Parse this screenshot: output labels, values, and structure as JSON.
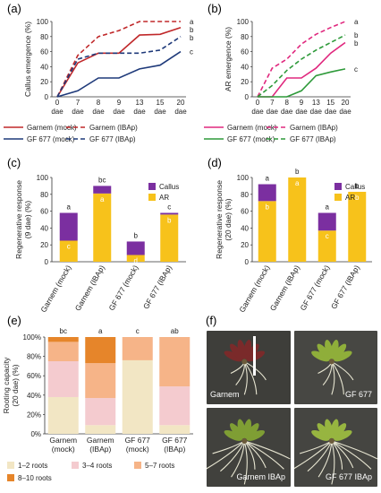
{
  "panel_letters": [
    "(a)",
    "(b)",
    "(c)",
    "(d)",
    "(e)",
    "(f)"
  ],
  "chart_data": [
    {
      "panel": "(a)",
      "type": "line",
      "ylabel": "Callus emergence (%)",
      "xlabel": "dae",
      "x": [
        "0",
        "7",
        "8",
        "9",
        "13",
        "15",
        "20"
      ],
      "ylim": [
        0,
        100
      ],
      "yticks": [
        "0",
        "20",
        "40",
        "60",
        "80",
        "100"
      ],
      "series": [
        {
          "name": "Garnem (mock)",
          "color": "#c0282a",
          "dash": "solid",
          "values": [
            0,
            45,
            58,
            58,
            82,
            83,
            92
          ]
        },
        {
          "name": "Garnem (IBAp)",
          "color": "#c0282a",
          "dash": "dashed",
          "values": [
            0,
            55,
            80,
            88,
            100,
            100,
            100
          ]
        },
        {
          "name": "GF 677 (mock)",
          "color": "#1f3a7a",
          "dash": "solid",
          "values": [
            0,
            8,
            25,
            25,
            37,
            42,
            60
          ]
        },
        {
          "name": "GF 677 (IBAp)",
          "color": "#1f3a7a",
          "dash": "dashed",
          "values": [
            0,
            50,
            58,
            58,
            58,
            62,
            80
          ]
        }
      ],
      "end_letters": [
        "a",
        "b",
        "b",
        "c"
      ]
    },
    {
      "panel": "(b)",
      "type": "line",
      "ylabel": "AR emergence (%)",
      "xlabel": "dae",
      "x": [
        "0",
        "7",
        "8",
        "9",
        "13",
        "15",
        "20"
      ],
      "ylim": [
        0,
        100
      ],
      "yticks": [
        "0",
        "20",
        "40",
        "60",
        "80",
        "100"
      ],
      "series": [
        {
          "name": "Garnem (mock)",
          "color": "#e0287e",
          "dash": "solid",
          "values": [
            0,
            0,
            25,
            25,
            38,
            58,
            72
          ]
        },
        {
          "name": "Garnem (IBAp)",
          "color": "#e0287e",
          "dash": "dashed",
          "values": [
            0,
            38,
            50,
            70,
            83,
            92,
            100
          ]
        },
        {
          "name": "GF 677 (mock)",
          "color": "#2e9a3a",
          "dash": "solid",
          "values": [
            0,
            0,
            0,
            8,
            28,
            33,
            37
          ]
        },
        {
          "name": "GF 677 (IBAp)",
          "color": "#2e9a3a",
          "dash": "dashed",
          "values": [
            0,
            15,
            35,
            50,
            62,
            72,
            82
          ]
        }
      ],
      "end_letters": [
        "a",
        "b",
        "b",
        "c"
      ]
    },
    {
      "panel": "(c)",
      "type": "bar",
      "stacked": true,
      "ylabel": "Regenerative response (9 dae) (%)",
      "ylim": [
        0,
        100
      ],
      "yticks": [
        "0",
        "20",
        "40",
        "60",
        "80",
        "100"
      ],
      "categories": [
        "Garnem (mock)",
        "Garnem (IBAp)",
        "GF 677 (mock)",
        "GF 677 (IBAp)"
      ],
      "series": [
        {
          "name": "AR",
          "color": "#f7c21b",
          "values": [
            25,
            81,
            8,
            56
          ]
        },
        {
          "name": "Callus",
          "color": "#7b2fa0",
          "values": [
            33,
            9,
            16,
            2
          ]
        }
      ],
      "inner_letters": [
        "c",
        "a",
        "d",
        "b"
      ],
      "top_letters": [
        "a",
        "bc",
        "b",
        "c"
      ]
    },
    {
      "panel": "(d)",
      "type": "bar",
      "stacked": true,
      "ylabel": "Regenerative response (20 dae) (%)",
      "ylim": [
        0,
        100
      ],
      "yticks": [
        "0",
        "20",
        "40",
        "60",
        "80",
        "100"
      ],
      "categories": [
        "Garnem (mock)",
        "Garnem (IBAp)",
        "GF 677 (mock)",
        "GF 677 (IBAp)"
      ],
      "series": [
        {
          "name": "AR",
          "color": "#f7c21b",
          "values": [
            72,
            100,
            37,
            83
          ]
        },
        {
          "name": "Callus",
          "color": "#7b2fa0",
          "values": [
            20,
            0,
            21,
            0
          ]
        }
      ],
      "inner_letters": [
        "b",
        "a",
        "c",
        "b"
      ],
      "top_letters": [
        "a",
        "b",
        "a",
        "b"
      ]
    },
    {
      "panel": "(e)",
      "type": "bar",
      "stacked": true,
      "ylabel": "Rooting capacity (20 dae) (%)",
      "ylim": [
        0,
        100
      ],
      "yticks": [
        "0%",
        "20%",
        "40%",
        "60%",
        "80%",
        "100%"
      ],
      "categories": [
        "Garnem (mock)",
        "Garnem (IBAp)",
        "GF 677 (mock)",
        "GF 677 (IBAp)"
      ],
      "series": [
        {
          "name": "1–2 roots",
          "color": "#f2e6c4",
          "values": [
            38,
            9,
            76,
            9
          ]
        },
        {
          "name": "3–4 roots",
          "color": "#f4cbcf",
          "values": [
            37,
            28,
            0,
            40
          ]
        },
        {
          "name": "5–7 roots",
          "color": "#f6b488",
          "values": [
            20,
            36,
            24,
            51
          ]
        },
        {
          "name": "8–10 roots",
          "color": "#e6852a",
          "values": [
            5,
            27,
            0,
            0
          ]
        }
      ],
      "top_letters": [
        "bc",
        "a",
        "c",
        "ab"
      ]
    }
  ],
  "photos": [
    {
      "label": "Garnem",
      "leaf": "#7a2a2a",
      "bg": "#3e3e3a"
    },
    {
      "label": "GF 677",
      "leaf": "#8fae3a",
      "bg": "#474743"
    },
    {
      "label": "Garnem IBAp",
      "leaf": "#7f9e34",
      "bg": "#41413d"
    },
    {
      "label": "GF 677 IBAp",
      "leaf": "#97b540",
      "bg": "#454541"
    }
  ]
}
